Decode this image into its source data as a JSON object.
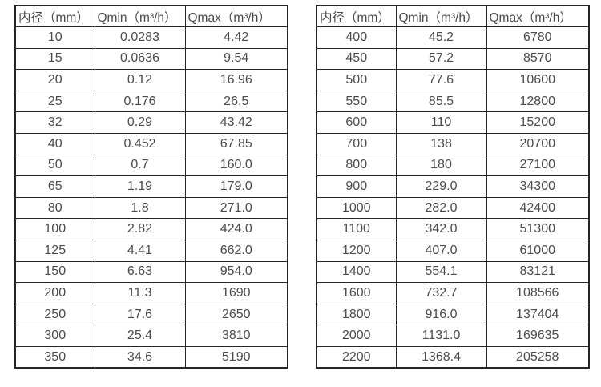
{
  "colors": {
    "background": "#ffffff",
    "text": "#4a4a4a",
    "border": "#262626"
  },
  "tables": [
    {
      "name": "small-diameter-table",
      "headers": [
        "内径（mm）",
        "Qmin（m³/h）",
        "Qmax（m³/h）"
      ],
      "rows": [
        [
          "10",
          "0.0283",
          "4.42"
        ],
        [
          "15",
          "0.0636",
          "9.54"
        ],
        [
          "20",
          "0.12",
          "16.96"
        ],
        [
          "25",
          "0.176",
          "26.5"
        ],
        [
          "32",
          "0.29",
          "43.42"
        ],
        [
          "40",
          "0.452",
          "67.85"
        ],
        [
          "50",
          "0.7",
          "160.0"
        ],
        [
          "65",
          "1.19",
          "179.0"
        ],
        [
          "80",
          "1.8",
          "271.0"
        ],
        [
          "100",
          "2.82",
          "424.0"
        ],
        [
          "125",
          "4.41",
          "662.0"
        ],
        [
          "150",
          "6.63",
          "954.0"
        ],
        [
          "200",
          "11.3",
          "1690"
        ],
        [
          "250",
          "17.6",
          "2650"
        ],
        [
          "300",
          "25.4",
          "3810"
        ],
        [
          "350",
          "34.6",
          "5190"
        ]
      ]
    },
    {
      "name": "large-diameter-table",
      "headers": [
        "内径（mm）",
        "Qmin（m³/h）",
        "Qmax（m³/h）"
      ],
      "rows": [
        [
          "400",
          "45.2",
          "6780"
        ],
        [
          "450",
          "57.2",
          "8570"
        ],
        [
          "500",
          "77.6",
          "10600"
        ],
        [
          "550",
          "85.5",
          "12800"
        ],
        [
          "600",
          "110",
          "15200"
        ],
        [
          "700",
          "138",
          "20700"
        ],
        [
          "800",
          "180",
          "27100"
        ],
        [
          "900",
          "229.0",
          "34300"
        ],
        [
          "1000",
          "282.0",
          "42400"
        ],
        [
          "1100",
          "342.0",
          "51300"
        ],
        [
          "1200",
          "407.0",
          "61000"
        ],
        [
          "1400",
          "554.1",
          "83121"
        ],
        [
          "1600",
          "732.7",
          "108566"
        ],
        [
          "1800",
          "916.0",
          "137404"
        ],
        [
          "2000",
          "1131.0",
          "169635"
        ],
        [
          "2200",
          "1368.4",
          "205258"
        ]
      ]
    }
  ]
}
